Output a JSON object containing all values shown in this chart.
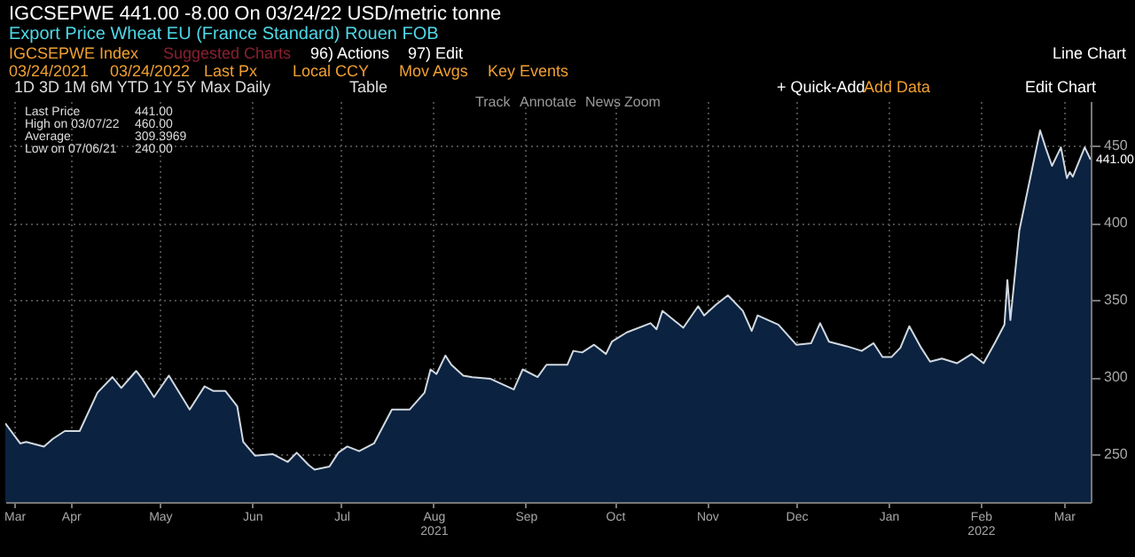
{
  "chart_data": {
    "type": "area",
    "title": "IGCSEPWE     441.00     -8.00     On 03/24/22     USD/metric tonne",
    "subtitle": "Export Price Wheat EU (France Standard) Rouen FOB",
    "annotations": [
      "IGCSEPWE Index",
      "Suggested Charts",
      "96) Actions",
      "97) Edit",
      "Line Chart",
      "03/24/2021",
      "03/24/2022",
      "Last Px",
      "Local CCY",
      "Mov Avgs",
      "Key Events",
      "1D  3D  1M  6M  YTD  1Y  5Y  Max  Daily",
      "Table",
      "+ Quick-Add",
      "Add Data",
      "Edit Chart",
      "Track",
      "Annotate",
      "News",
      "Zoom",
      "Last Price",
      "441.00",
      "High on 03/07/22",
      "460.00",
      "Average",
      "309.3969",
      "Low on 07/06/21",
      "240.00",
      {
        "text": "441.00",
        "x": "2022-03-24",
        "y": 441
      }
    ],
    "series": [
      {
        "color": "#0b2240",
        "x": [
          "2021-03-24",
          "2021-03-29",
          "2021-03-31",
          "2021-04-06",
          "2021-04-09",
          "2021-04-13",
          "2021-04-18",
          "2021-04-24",
          "2021-04-29",
          "2021-05-02",
          "2021-05-07",
          "2021-05-09",
          "2021-05-13",
          "2021-05-18",
          "2021-05-25",
          "2021-05-30",
          "2021-06-02",
          "2021-06-06",
          "2021-06-10",
          "2021-06-12",
          "2021-06-16",
          "2021-06-22",
          "2021-06-27",
          "2021-06-30",
          "2021-07-04",
          "2021-07-06",
          "2021-07-11",
          "2021-07-14",
          "2021-07-17",
          "2021-07-21",
          "2021-07-26",
          "2021-08-01",
          "2021-08-07",
          "2021-08-12",
          "2021-08-14",
          "2021-08-16",
          "2021-08-19",
          "2021-08-21",
          "2021-08-25",
          "2021-08-28",
          "2021-09-03",
          "2021-09-11",
          "2021-09-14",
          "2021-09-19",
          "2021-09-22",
          "2021-09-29",
          "2021-10-01",
          "2021-10-04",
          "2021-10-08",
          "2021-10-12",
          "2021-10-14",
          "2021-10-19",
          "2021-10-27",
          "2021-10-29",
          "2021-10-31",
          "2021-11-07",
          "2021-11-12",
          "2021-11-14",
          "2021-11-18",
          "2021-11-22",
          "2021-11-27",
          "2021-11-30",
          "2021-12-02",
          "2021-12-09",
          "2021-12-15",
          "2021-12-20",
          "2021-12-23",
          "2021-12-26",
          "2022-01-01",
          "2022-01-06",
          "2022-01-10",
          "2022-01-13",
          "2022-01-16",
          "2022-01-19",
          "2022-01-22",
          "2022-01-26",
          "2022-01-29",
          "2022-02-02",
          "2022-02-07",
          "2022-02-12",
          "2022-02-16",
          "2022-02-20",
          "2022-02-23",
          "2022-02-24",
          "2022-02-25",
          "2022-02-28",
          "2022-03-07",
          "2022-03-09",
          "2022-03-11",
          "2022-03-14",
          "2022-03-16",
          "2022-03-17",
          "2022-03-18",
          "2022-03-22",
          "2022-03-24"
        ],
        "values": [
          270,
          257,
          258,
          255,
          260,
          265,
          265,
          290,
          300,
          293,
          304,
          299,
          287,
          301,
          279,
          294,
          291,
          291,
          281,
          258,
          249,
          250,
          245,
          251,
          243,
          240,
          242,
          251,
          255,
          252,
          257,
          279,
          279,
          290,
          305,
          302,
          314,
          308,
          301,
          300,
          299,
          292,
          305,
          300,
          308,
          308,
          317,
          316,
          321,
          315,
          323,
          329,
          335,
          331,
          343,
          332,
          346,
          340,
          347,
          353,
          343,
          330,
          340,
          334,
          321,
          322,
          335,
          323,
          320,
          317,
          322,
          313,
          313,
          319,
          333,
          319,
          310,
          312,
          309,
          315,
          309,
          323,
          334,
          363,
          337,
          395,
          460,
          448,
          437,
          449,
          429,
          433,
          430,
          449,
          441
        ]
      }
    ],
    "xlim": [
      "2021-03-24",
      "2022-03-24"
    ],
    "xticks": [
      {
        "value": "2021-03-27",
        "label": "Mar"
      },
      {
        "value": "2021-04-15",
        "label": "Apr"
      },
      {
        "value": "2021-05-15",
        "label": "May"
      },
      {
        "value": "2021-06-15",
        "label": "Jun"
      },
      {
        "value": "2021-07-15",
        "label": "Jul"
      },
      {
        "value": "2021-08-15",
        "label": "Aug 2021"
      },
      {
        "value": "2021-09-15",
        "label": "Sep"
      },
      {
        "value": "2021-10-15",
        "label": "Oct"
      },
      {
        "value": "2021-11-15",
        "label": "Nov"
      },
      {
        "value": "2021-12-15",
        "label": "Dec"
      },
      {
        "value": "2022-01-15",
        "label": "Jan"
      },
      {
        "value": "2022-02-15",
        "label": "Feb 2022"
      },
      {
        "value": "2022-03-15",
        "label": "Mar"
      }
    ],
    "ylim": [
      219,
      479
    ],
    "yticks": [
      250,
      300,
      350,
      400,
      450
    ],
    "grid": true
  }
}
